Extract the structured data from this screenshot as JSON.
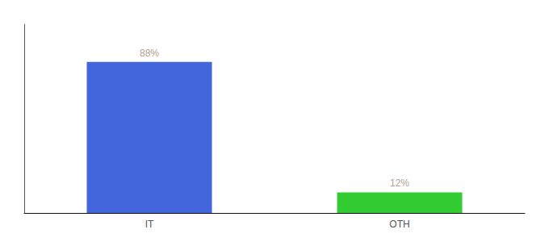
{
  "chart_data": {
    "type": "bar",
    "categories": [
      "IT",
      "OTH"
    ],
    "values": [
      88,
      12
    ],
    "value_labels": [
      "88%",
      "12%"
    ],
    "colors": [
      "#4466dd",
      "#33cc33"
    ],
    "ylim": [
      0,
      110
    ],
    "data_labels": true,
    "tick_labels": "x",
    "grid": false
  }
}
